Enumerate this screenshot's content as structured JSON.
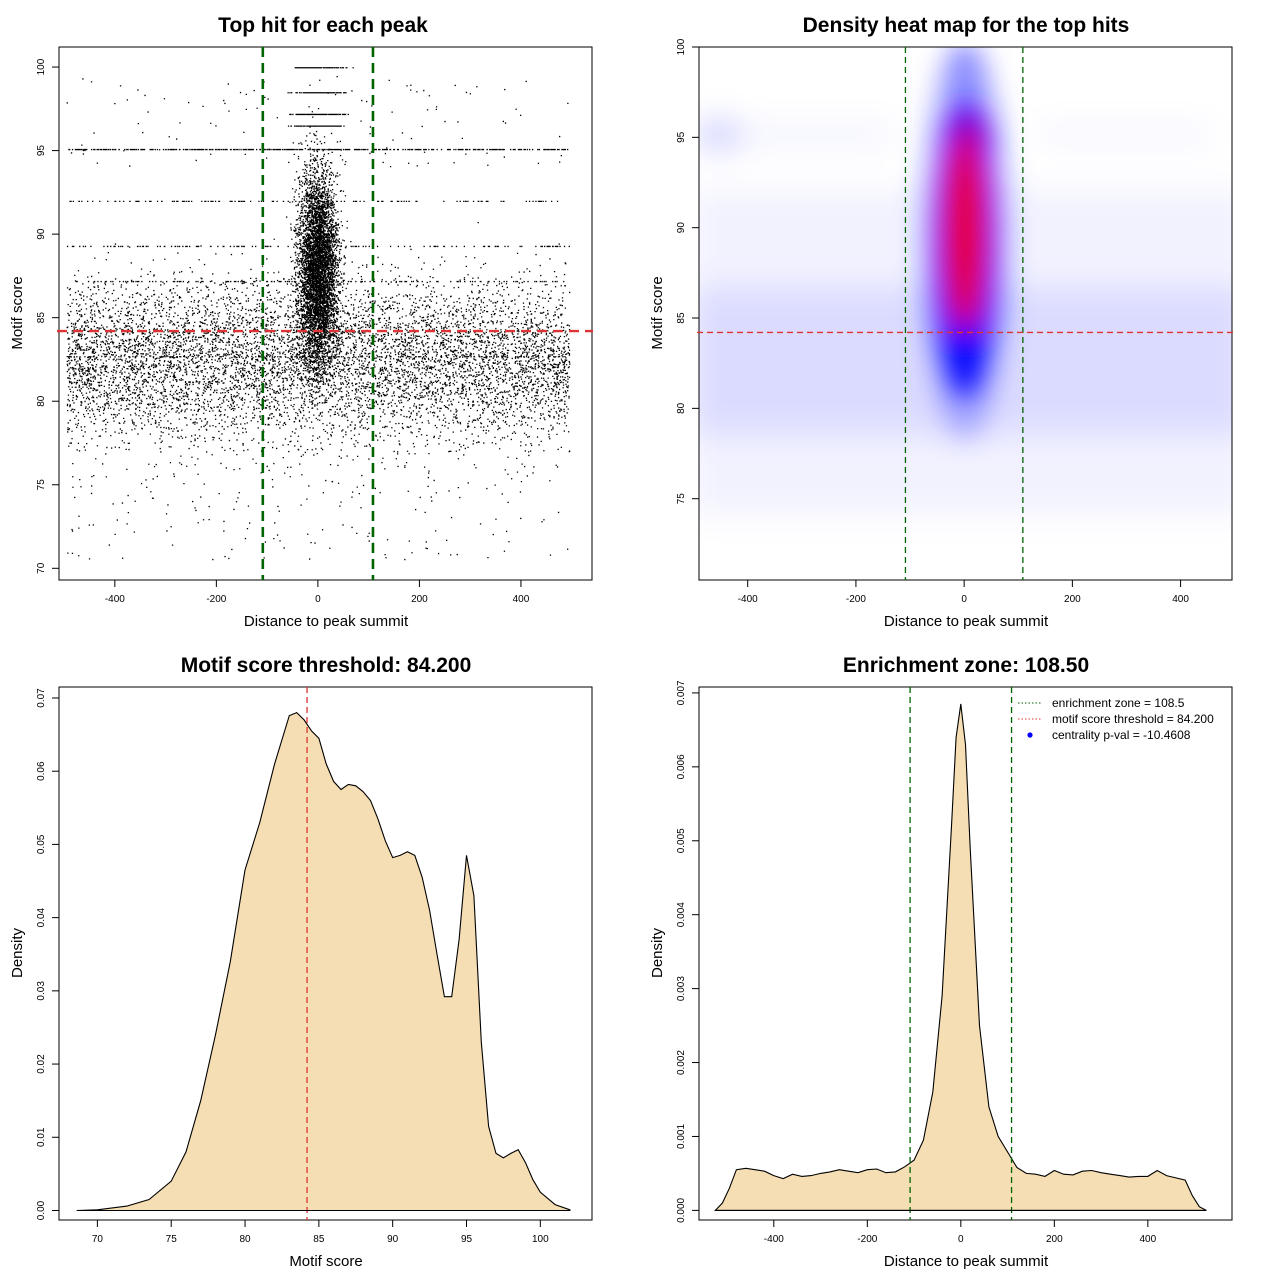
{
  "colors": {
    "threshold_line": "#dd3333",
    "zone_line": "#006400",
    "density_fill": "#f5deb3",
    "heat_low": "#ffffff",
    "heat_mid": "#0000ff",
    "heat_high": "#ff0000",
    "legend_point": "#0000ff"
  },
  "chart_data": [
    {
      "type": "scatter",
      "title": "Top hit for each peak",
      "xlabel": "Distance to peak summit",
      "ylabel": "Motif score",
      "xlim": [
        -510,
        540
      ],
      "ylim": [
        69.3,
        101.2
      ],
      "xticks": [
        -400,
        -200,
        0,
        200,
        400
      ],
      "xtick_labels": [
        "-400",
        "-200",
        "0",
        "200",
        "400"
      ],
      "yticks": [
        70,
        75,
        80,
        85,
        90,
        95,
        100
      ],
      "ytick_labels": [
        "70",
        "75",
        "80",
        "85",
        "90",
        "95",
        "100"
      ],
      "hlines": [
        84.2
      ],
      "vlines": [
        -108.5,
        108.5
      ],
      "points_description": "dense cloud of top-hit points, concentrated around distance 0 and spread uniformly between -500 and 500, motif score roughly 71 to 100"
    },
    {
      "type": "heatmap",
      "title": "Density heat map for the top hits",
      "xlabel": "Distance to peak summit",
      "ylabel": "Motif score",
      "xlim": [
        -490,
        495
      ],
      "ylim": [
        70.5,
        100
      ],
      "xticks": [
        -400,
        -200,
        0,
        200,
        400
      ],
      "xtick_labels": [
        "-400",
        "-200",
        "0",
        "200",
        "400"
      ],
      "yticks": [
        75,
        80,
        85,
        90,
        95,
        100
      ],
      "ytick_labels": [
        "75",
        "80",
        "85",
        "90",
        "95",
        "100"
      ],
      "hlines": [
        84.2
      ],
      "vlines": [
        -108.5,
        108.5
      ],
      "hotspot": {
        "x": 0,
        "y_range": [
          82,
          97
        ],
        "peak_y": 91.5
      },
      "background_band": {
        "y_range": [
          76,
          90
        ]
      }
    },
    {
      "type": "area",
      "title": "Motif score threshold: 84.200",
      "xlabel": "Motif score",
      "ylabel": "Density",
      "xlim": [
        67.4,
        103.5
      ],
      "ylim": [
        -0.0013,
        0.0715
      ],
      "xticks": [
        70,
        75,
        80,
        85,
        90,
        95,
        100
      ],
      "xtick_labels": [
        "70",
        "75",
        "80",
        "85",
        "90",
        "95",
        "100"
      ],
      "yticks": [
        0,
        0.01,
        0.02,
        0.03,
        0.04,
        0.05,
        0.06,
        0.07
      ],
      "ytick_labels": [
        "0.00",
        "0.01",
        "0.02",
        "0.03",
        "0.04",
        "0.05",
        "0.06",
        "0.07"
      ],
      "vlines": [
        84.2
      ],
      "x": [
        68.6,
        70,
        72,
        73.5,
        75,
        76,
        77,
        78,
        79,
        80,
        81,
        82,
        83,
        83.5,
        84,
        84.5,
        85,
        85.5,
        86,
        86.5,
        87,
        87.5,
        88,
        88.5,
        89,
        89.5,
        90,
        90.5,
        91,
        91.5,
        92,
        92.5,
        93,
        93.5,
        94,
        94.5,
        95,
        95.5,
        96,
        96.5,
        97,
        97.5,
        98,
        98.5,
        99,
        99.5,
        100,
        101,
        102
      ],
      "y": [
        0,
        0.0001,
        0.0006,
        0.0015,
        0.004,
        0.008,
        0.015,
        0.024,
        0.034,
        0.0465,
        0.053,
        0.061,
        0.0676,
        0.068,
        0.067,
        0.0655,
        0.0645,
        0.061,
        0.0586,
        0.0575,
        0.0582,
        0.058,
        0.0572,
        0.056,
        0.0535,
        0.0505,
        0.0482,
        0.0485,
        0.049,
        0.0485,
        0.0455,
        0.041,
        0.035,
        0.0292,
        0.0292,
        0.037,
        0.0485,
        0.043,
        0.023,
        0.0115,
        0.0078,
        0.0072,
        0.0078,
        0.0083,
        0.0065,
        0.0042,
        0.0025,
        0.0008,
        0.0001
      ]
    },
    {
      "type": "area",
      "title": "Enrichment zone: 108.50",
      "xlabel": "Distance to peak summit",
      "ylabel": "Density",
      "xlim": [
        -560,
        580
      ],
      "ylim": [
        -0.00013,
        0.00708
      ],
      "xticks": [
        -400,
        -200,
        0,
        200,
        400
      ],
      "xtick_labels": [
        "-400",
        "-200",
        "0",
        "200",
        "400"
      ],
      "yticks": [
        0,
        0.001,
        0.002,
        0.003,
        0.004,
        0.005,
        0.006,
        0.007
      ],
      "ytick_labels": [
        "0.000",
        "0.001",
        "0.002",
        "0.003",
        "0.004",
        "0.005",
        "0.006",
        "0.007"
      ],
      "vlines": [
        -108.5,
        108.5
      ],
      "x": [
        -525,
        -510,
        -495,
        -480,
        -460,
        -440,
        -420,
        -400,
        -380,
        -360,
        -340,
        -320,
        -300,
        -280,
        -260,
        -240,
        -220,
        -200,
        -180,
        -160,
        -140,
        -120,
        -100,
        -80,
        -60,
        -40,
        -20,
        -10,
        0,
        10,
        20,
        40,
        60,
        80,
        100,
        120,
        140,
        160,
        180,
        200,
        220,
        240,
        260,
        280,
        300,
        320,
        340,
        360,
        380,
        400,
        420,
        440,
        460,
        480,
        495,
        510,
        525
      ],
      "y": [
        0,
        0.0001,
        0.0003,
        0.00055,
        0.00057,
        0.00055,
        0.00053,
        0.00047,
        0.00043,
        0.00049,
        0.00046,
        0.00047,
        0.0005,
        0.00052,
        0.00055,
        0.00053,
        0.00051,
        0.00055,
        0.00056,
        0.00051,
        0.00052,
        0.00059,
        0.00068,
        0.00095,
        0.0016,
        0.0029,
        0.0052,
        0.0064,
        0.00685,
        0.0063,
        0.0049,
        0.0025,
        0.0014,
        0.001,
        0.00079,
        0.00058,
        0.0005,
        0.00049,
        0.00046,
        0.00054,
        0.00049,
        0.00048,
        0.00053,
        0.00054,
        0.00051,
        0.00049,
        0.00047,
        0.00045,
        0.00046,
        0.00046,
        0.00054,
        0.00047,
        0.00044,
        0.00041,
        0.0002,
        5e-05,
        0
      ]
    }
  ],
  "legend": {
    "items": [
      {
        "label": "enrichment zone = 108.5",
        "style": "dotted-line",
        "color": "#006400"
      },
      {
        "label": "motif score threshold = 84.200",
        "style": "dotted-line",
        "color": "#dd3333"
      },
      {
        "label": "centrality p-val = -10.4608",
        "style": "point",
        "color": "#0000ff"
      }
    ]
  }
}
